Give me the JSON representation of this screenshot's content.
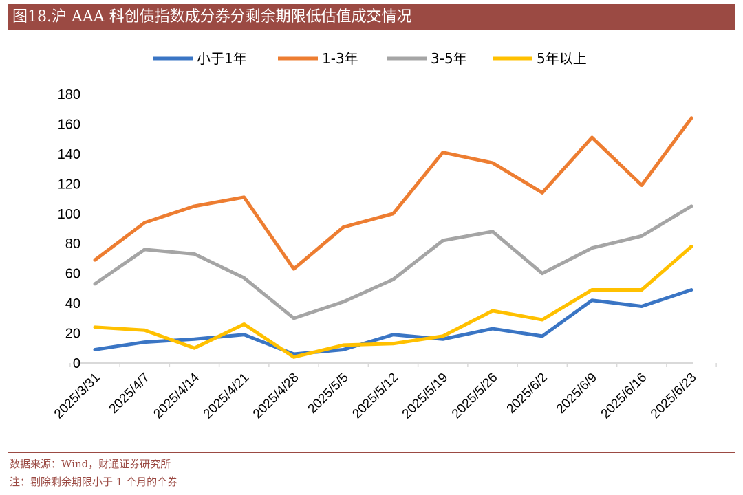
{
  "header": {
    "title": "图18.沪 AAA 科创债指数成分券分剩余期限低估值成交情况"
  },
  "footer": {
    "source": "数据来源：Wind，财通证券研究所",
    "note": "注：剔除剩余期限小于 1 个月的个券"
  },
  "chart_data": {
    "type": "line",
    "title": "",
    "xlabel": "",
    "ylabel": "",
    "ylim": [
      0,
      180
    ],
    "yticks": [
      "0",
      "20",
      "40",
      "60",
      "80",
      "100",
      "120",
      "140",
      "160",
      "180"
    ],
    "legend_position": "top",
    "grid": false,
    "categories": [
      "2025/3/31",
      "2025/4/7",
      "2025/4/14",
      "2025/4/21",
      "2025/4/28",
      "2025/5/5",
      "2025/5/12",
      "2025/5/19",
      "2025/5/26",
      "2025/6/2",
      "2025/6/9",
      "2025/6/16",
      "2025/6/23"
    ],
    "series": [
      {
        "name": "小于1年",
        "color": "#3a75c4",
        "values": [
          9,
          14,
          16,
          19,
          6,
          9,
          19,
          16,
          23,
          18,
          42,
          38,
          49
        ]
      },
      {
        "name": "1-3年",
        "color": "#ed7d31",
        "values": [
          69,
          94,
          105,
          111,
          63,
          91,
          100,
          141,
          134,
          114,
          151,
          119,
          164
        ]
      },
      {
        "name": "3-5年",
        "color": "#a5a5a5",
        "values": [
          53,
          76,
          73,
          57,
          30,
          41,
          56,
          82,
          88,
          60,
          77,
          85,
          105
        ]
      },
      {
        "name": "5年以上",
        "color": "#ffc000",
        "values": [
          24,
          22,
          10,
          26,
          4,
          12,
          13,
          18,
          35,
          29,
          49,
          49,
          78
        ]
      }
    ]
  }
}
